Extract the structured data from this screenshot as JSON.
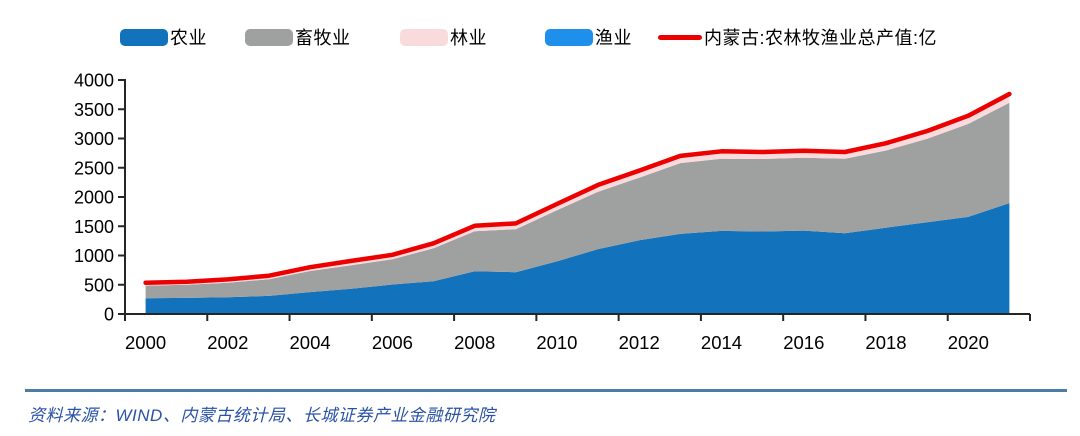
{
  "chart_data": {
    "type": "area",
    "stacked": true,
    "title": "",
    "xlabel": "",
    "ylabel": "",
    "x": [
      2000,
      2001,
      2002,
      2003,
      2004,
      2005,
      2006,
      2007,
      2008,
      2009,
      2010,
      2011,
      2012,
      2013,
      2014,
      2015,
      2016,
      2017,
      2018,
      2019,
      2020,
      2021
    ],
    "series": [
      {
        "name": "农业",
        "color": "#1272BC",
        "values": [
          270,
          275,
          285,
          310,
          375,
          430,
          505,
          560,
          730,
          715,
          900,
          1110,
          1260,
          1370,
          1420,
          1410,
          1425,
          1380,
          1475,
          1570,
          1660,
          1895
        ]
      },
      {
        "name": "畜牧业",
        "color": "#9FA0A0",
        "values": [
          215,
          225,
          250,
          285,
          360,
          405,
          430,
          565,
          685,
          735,
          875,
          980,
          1070,
          1210,
          1235,
          1240,
          1245,
          1275,
          1320,
          1425,
          1590,
          1715
        ]
      },
      {
        "name": "林业",
        "color": "#FADBDD",
        "values": [
          40,
          42,
          45,
          48,
          52,
          58,
          62,
          65,
          72,
          76,
          80,
          88,
          92,
          92,
          95,
          90,
          90,
          85,
          92,
          98,
          102,
          108
        ]
      },
      {
        "name": "渔业",
        "color": "#1E90EB",
        "values": [
          10,
          10,
          11,
          12,
          13,
          14,
          15,
          18,
          20,
          22,
          25,
          28,
          30,
          30,
          32,
          30,
          31,
          30,
          33,
          35,
          38,
          42
        ]
      }
    ],
    "total_line": {
      "name": "内蒙古:农林牧渔业总产值:亿",
      "color": "#EC0000",
      "note": "sum of the four stacked series"
    },
    "ylim": [
      0,
      4000
    ],
    "ytick_interval": 500,
    "ytick_labels": [
      "0",
      "500",
      "1000",
      "1500",
      "2000",
      "2500",
      "3000",
      "3500",
      "4000"
    ],
    "xtick_labels": [
      "2000",
      "2002",
      "2004",
      "2006",
      "2008",
      "2010",
      "2012",
      "2014",
      "2016",
      "2018",
      "2020"
    ],
    "grid": false,
    "legend_position": "top",
    "axis_color": "#262626",
    "tick_label_color": "#000000"
  },
  "footer": {
    "source_text": "资料来源：WIND、内蒙古统计局、长城证券产业金融研究院",
    "text_color": "#2A52A6",
    "rule_color": "#4E7CA8"
  }
}
